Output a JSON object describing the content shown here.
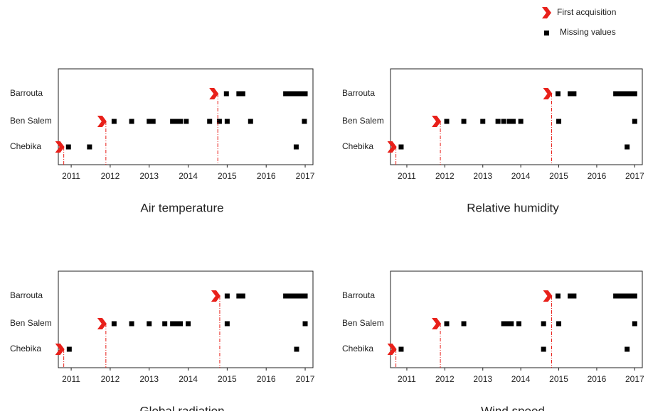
{
  "legend": [
    {
      "name": "First acquisition",
      "color": "#e8201a"
    },
    {
      "name": "Missing values",
      "color": "#000000"
    }
  ],
  "chart_data": [
    {
      "type": "timeline",
      "title": "Air temperature",
      "categories": [
        "Barrouta",
        "Ben Salem",
        "Chebika"
      ],
      "first_acquisition": [
        2014.65,
        2011.78,
        2010.7
      ],
      "missing_values": [
        [
          2014.98,
          2015.3,
          2015.4,
          2016.5,
          2016.6,
          2016.7,
          2016.8,
          2016.9,
          2017.0
        ],
        [
          2012.1,
          2012.55,
          2013.0,
          2013.1,
          2013.6,
          2013.7,
          2013.8,
          2013.95,
          2014.55,
          2014.8,
          2015.0,
          2015.6,
          2016.98
        ],
        [
          2010.93,
          2011.47,
          2016.77
        ]
      ],
      "xlim": [
        2010.67,
        2017.2
      ],
      "xticks": [
        2011,
        2012,
        2013,
        2014,
        2015,
        2016,
        2017
      ]
    },
    {
      "type": "timeline",
      "title": "Relative humidity",
      "categories": [
        "Barrouta",
        "Ben Salem",
        "Chebika"
      ],
      "first_acquisition": [
        2014.7,
        2011.77,
        2010.6
      ],
      "missing_values": [
        [
          2014.98,
          2015.3,
          2015.4,
          2016.5,
          2016.6,
          2016.7,
          2016.8,
          2016.9,
          2017.0
        ],
        [
          2012.05,
          2012.5,
          2013.0,
          2013.4,
          2013.55,
          2013.7,
          2013.8,
          2014.0,
          2015.0,
          2017.0
        ],
        [
          2010.85,
          2016.8
        ]
      ],
      "xlim": [
        2010.57,
        2017.2
      ],
      "xticks": [
        2011,
        2012,
        2013,
        2014,
        2015,
        2016,
        2017
      ]
    },
    {
      "type": "timeline",
      "title": "Global radiation",
      "categories": [
        "Barrouta",
        "Ben Salem",
        "Chebika"
      ],
      "first_acquisition": [
        2014.7,
        2011.78,
        2010.7
      ],
      "missing_values": [
        [
          2015.0,
          2015.3,
          2015.4,
          2016.5,
          2016.6,
          2016.7,
          2016.8,
          2016.9,
          2017.0
        ],
        [
          2012.1,
          2012.55,
          2013.0,
          2013.4,
          2013.6,
          2013.7,
          2013.8,
          2014.0,
          2015.0,
          2017.0
        ],
        [
          2010.95,
          2016.78
        ]
      ],
      "xlim": [
        2010.67,
        2017.2
      ],
      "xticks": [
        2011,
        2012,
        2013,
        2014,
        2015,
        2016,
        2017
      ]
    },
    {
      "type": "timeline",
      "title": "Wind speed",
      "categories": [
        "Barrouta",
        "Ben Salem",
        "Chebika"
      ],
      "first_acquisition": [
        2014.7,
        2011.77,
        2010.6
      ],
      "missing_values": [
        [
          2014.98,
          2015.3,
          2015.4,
          2016.5,
          2016.6,
          2016.7,
          2016.8,
          2016.9,
          2017.0
        ],
        [
          2012.05,
          2012.5,
          2013.55,
          2013.65,
          2013.75,
          2013.95,
          2014.6,
          2015.0,
          2017.0
        ],
        [
          2010.85,
          2014.6,
          2016.8
        ]
      ],
      "xlim": [
        2010.57,
        2017.2
      ],
      "xticks": [
        2011,
        2012,
        2013,
        2014,
        2015,
        2016,
        2017
      ]
    }
  ]
}
